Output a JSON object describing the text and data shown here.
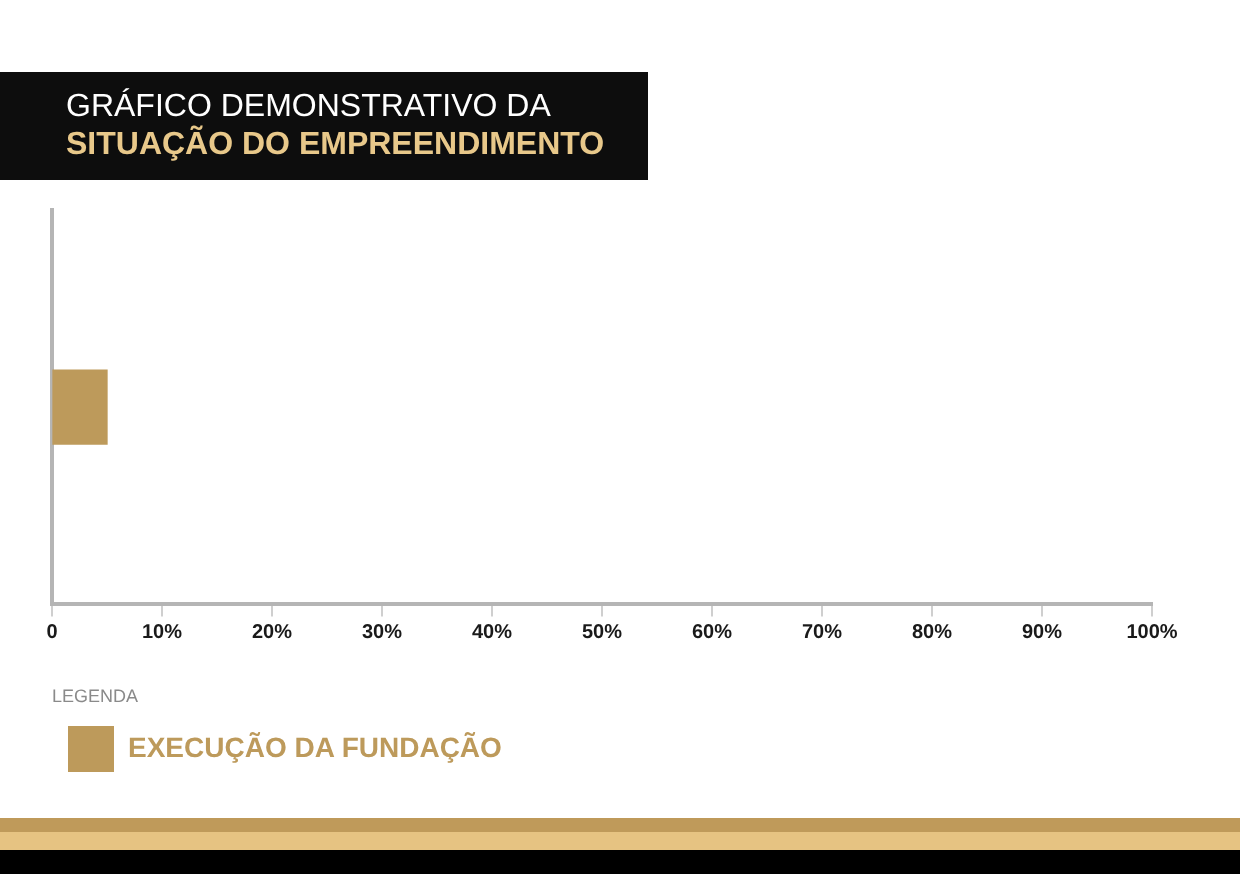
{
  "chart_data": {
    "type": "bar",
    "orientation": "horizontal",
    "title": "GRÁFICO DEMONSTRATIVO DA",
    "subtitle": "SITUAÇÃO DO EMPREENDIMENTO",
    "categories": [
      null
    ],
    "series": [
      {
        "name": "EXECUÇÃO DA FUNDAÇÃO",
        "color": "#bd9a5b",
        "values": [
          5
        ]
      }
    ],
    "xlim": [
      0,
      100
    ],
    "xticks": [
      0,
      {
        "value": 10,
        "label": "10%"
      },
      {
        "value": 20,
        "label": "20%"
      },
      {
        "value": 30,
        "label": "30%"
      },
      {
        "value": 40,
        "label": "40%"
      },
      {
        "value": 50,
        "label": "50%"
      },
      {
        "value": 60,
        "label": "60%"
      },
      {
        "value": 70,
        "label": "70%"
      },
      {
        "value": 80,
        "label": "80%"
      },
      {
        "value": 90,
        "label": "90%"
      },
      {
        "value": 100,
        "label": "100%"
      }
    ],
    "tick_labels": "x",
    "grid": false,
    "legend": "bottom left",
    "legend_title": "LEGENDA"
  }
}
